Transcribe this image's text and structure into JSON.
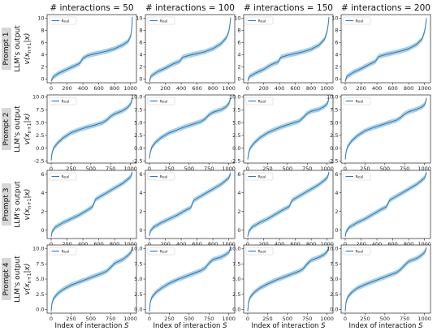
{
  "figure": {
    "column_titles": [
      "# interactions = 50",
      "# interactions = 100",
      "# interactions = 150",
      "# interactions = 200"
    ],
    "row_labels": [
      "Prompt 1",
      "Prompt 2",
      "Prompt 3",
      "Prompt 4"
    ],
    "y_axis_label_line1": "LLM's output",
    "y_axis_label_line2": "v(x_{n+1}|x)",
    "x_axis_label": "Index of interaction S",
    "line_color": "#2a7ab8",
    "band_color": "#8cbfe0"
  },
  "chart_data": [
    {
      "type": "line",
      "row": 1,
      "col": 1,
      "legend": [
        "Real"
      ],
      "x_range": [
        0,
        1024
      ],
      "x_ticks": [
        0,
        200,
        400,
        600,
        800,
        1000
      ],
      "y_ticks": [
        0,
        2,
        4,
        6,
        8,
        10
      ],
      "ylim": [
        -0.6,
        10.6
      ],
      "series": [
        {
          "name": "Real",
          "x": [
            0,
            30,
            100,
            200,
            300,
            360,
            400,
            450,
            500,
            600,
            700,
            800,
            900,
            970,
            1000,
            1010,
            1020,
            1024
          ],
          "y": [
            -0.3,
            0.4,
            1.0,
            1.6,
            2.2,
            2.6,
            3.4,
            3.8,
            4.0,
            4.3,
            4.6,
            5.0,
            5.6,
            6.2,
            7.0,
            7.6,
            9.0,
            10.2
          ]
        }
      ]
    },
    {
      "type": "line",
      "row": 1,
      "col": 2,
      "legend": [
        "Real"
      ],
      "x_range": [
        0,
        1024
      ],
      "x_ticks": [
        0,
        200,
        400,
        600,
        800,
        1000
      ],
      "y_ticks": [
        0,
        2,
        4,
        6,
        8,
        10
      ],
      "ylim": [
        -0.6,
        10.6
      ],
      "series": [
        {
          "name": "Real",
          "x": [
            0,
            20,
            100,
            200,
            300,
            380,
            420,
            500,
            600,
            700,
            800,
            900,
            970,
            1000,
            1015,
            1024
          ],
          "y": [
            -0.4,
            0.5,
            1.2,
            1.8,
            2.5,
            2.9,
            3.6,
            3.9,
            4.2,
            4.5,
            5.0,
            5.8,
            6.8,
            7.8,
            9.0,
            10.1
          ]
        }
      ]
    },
    {
      "type": "line",
      "row": 1,
      "col": 3,
      "legend": [
        "Real"
      ],
      "x_range": [
        0,
        1024
      ],
      "x_ticks": [
        0,
        200,
        400,
        600,
        800,
        1000
      ],
      "y_ticks": [
        0,
        2,
        4,
        6,
        8,
        10
      ],
      "ylim": [
        -0.6,
        10.6
      ],
      "series": [
        {
          "name": "Real",
          "x": [
            0,
            20,
            100,
            200,
            300,
            380,
            420,
            500,
            600,
            700,
            800,
            900,
            970,
            1000,
            1015,
            1024
          ],
          "y": [
            -0.3,
            0.4,
            1.0,
            1.6,
            2.4,
            2.8,
            3.6,
            3.9,
            4.2,
            4.5,
            4.9,
            5.6,
            6.6,
            7.8,
            9.0,
            10.2
          ]
        }
      ]
    },
    {
      "type": "line",
      "row": 1,
      "col": 4,
      "legend": [
        "Real"
      ],
      "x_range": [
        0,
        1024
      ],
      "x_ticks": [
        0,
        200,
        400,
        600,
        800,
        1000
      ],
      "y_ticks": [
        0,
        2,
        4,
        6,
        8,
        10
      ],
      "ylim": [
        -0.6,
        10.6
      ],
      "series": [
        {
          "name": "Real",
          "x": [
            0,
            20,
            100,
            200,
            300,
            380,
            420,
            500,
            600,
            700,
            800,
            900,
            970,
            1000,
            1015,
            1024
          ],
          "y": [
            -0.4,
            0.4,
            1.1,
            1.7,
            2.4,
            2.9,
            3.7,
            4.0,
            4.3,
            4.6,
            5.0,
            5.7,
            6.6,
            7.8,
            9.0,
            10.0
          ]
        }
      ]
    },
    {
      "type": "line",
      "row": 2,
      "col": 1,
      "legend": [
        "Real"
      ],
      "x_range": [
        0,
        1024
      ],
      "x_ticks": [
        0,
        250,
        500,
        750,
        1000
      ],
      "y_ticks": [
        -2.5,
        0.0,
        2.5,
        5.0,
        7.5,
        10.0
      ],
      "ylim": [
        -2.9,
        10.4
      ],
      "series": [
        {
          "name": "Real",
          "x": [
            0,
            10,
            30,
            80,
            150,
            250,
            350,
            450,
            550,
            650,
            700,
            750,
            800,
            900,
            960,
            1000,
            1015,
            1024
          ],
          "y": [
            -2.4,
            -1.0,
            0.0,
            1.0,
            2.0,
            3.0,
            3.6,
            4.1,
            4.5,
            5.0,
            5.5,
            6.2,
            6.7,
            7.3,
            7.9,
            8.6,
            9.2,
            9.8
          ]
        }
      ]
    },
    {
      "type": "line",
      "row": 2,
      "col": 2,
      "legend": [
        "Real"
      ],
      "x_range": [
        0,
        1024
      ],
      "x_ticks": [
        0,
        250,
        500,
        750,
        1000
      ],
      "y_ticks": [
        -2.5,
        0.0,
        2.5,
        5.0,
        7.5,
        10.0
      ],
      "ylim": [
        -2.9,
        10.4
      ],
      "series": [
        {
          "name": "Real",
          "x": [
            0,
            10,
            30,
            80,
            150,
            250,
            350,
            450,
            550,
            650,
            700,
            750,
            800,
            900,
            960,
            1000,
            1015,
            1024
          ],
          "y": [
            -2.0,
            -0.8,
            0.2,
            1.2,
            2.1,
            3.0,
            3.6,
            4.2,
            4.7,
            5.2,
            5.7,
            6.5,
            7.0,
            7.5,
            8.0,
            8.7,
            9.3,
            9.9
          ]
        }
      ]
    },
    {
      "type": "line",
      "row": 2,
      "col": 3,
      "legend": [
        "Real"
      ],
      "x_range": [
        0,
        1024
      ],
      "x_ticks": [
        0,
        250,
        500,
        750,
        1000
      ],
      "y_ticks": [
        -2.5,
        0.0,
        2.5,
        5.0,
        7.5,
        10.0
      ],
      "ylim": [
        -2.9,
        10.4
      ],
      "series": [
        {
          "name": "Real",
          "x": [
            0,
            10,
            30,
            80,
            150,
            250,
            350,
            450,
            550,
            650,
            700,
            750,
            800,
            900,
            960,
            1000,
            1015,
            1024
          ],
          "y": [
            -2.2,
            -1.0,
            0.0,
            1.0,
            2.0,
            3.0,
            3.7,
            4.3,
            4.8,
            5.3,
            6.0,
            6.8,
            7.2,
            7.6,
            8.1,
            8.6,
            9.2,
            9.8
          ]
        }
      ]
    },
    {
      "type": "line",
      "row": 2,
      "col": 4,
      "legend": [
        "Real"
      ],
      "x_range": [
        0,
        1024
      ],
      "x_ticks": [
        0,
        250,
        500,
        750,
        1000
      ],
      "y_ticks": [
        -2.5,
        0.0,
        2.5,
        5.0,
        7.5,
        10.0
      ],
      "ylim": [
        -2.9,
        10.4
      ],
      "series": [
        {
          "name": "Real",
          "x": [
            0,
            10,
            30,
            80,
            150,
            250,
            350,
            450,
            550,
            650,
            700,
            750,
            800,
            900,
            960,
            1000,
            1015,
            1024
          ],
          "y": [
            -2.2,
            -0.8,
            0.3,
            1.4,
            2.4,
            3.4,
            4.0,
            4.5,
            5.0,
            5.5,
            6.0,
            6.7,
            7.1,
            7.6,
            8.0,
            8.5,
            9.1,
            9.8
          ]
        }
      ]
    },
    {
      "type": "line",
      "row": 3,
      "col": 1,
      "legend": [
        "Real"
      ],
      "x_range": [
        0,
        1024
      ],
      "x_ticks": [
        0,
        200,
        400,
        600,
        800,
        1000
      ],
      "y_ticks": [
        0,
        2,
        4,
        6
      ],
      "ylim": [
        -0.9,
        6.4
      ],
      "series": [
        {
          "name": "Real",
          "x": [
            0,
            10,
            50,
            150,
            250,
            350,
            450,
            520,
            560,
            620,
            700,
            800,
            900,
            960,
            1000,
            1015,
            1024
          ],
          "y": [
            -0.7,
            -0.2,
            0.3,
            0.8,
            1.2,
            1.6,
            2.1,
            2.5,
            3.3,
            3.6,
            4.0,
            4.5,
            5.0,
            5.4,
            5.7,
            6.0,
            6.2
          ]
        }
      ]
    },
    {
      "type": "line",
      "row": 3,
      "col": 2,
      "legend": [
        "Real"
      ],
      "x_range": [
        0,
        1024
      ],
      "x_ticks": [
        0,
        200,
        400,
        600,
        800,
        1000
      ],
      "y_ticks": [
        0,
        2,
        4,
        6
      ],
      "ylim": [
        -0.9,
        6.4
      ],
      "series": [
        {
          "name": "Real",
          "x": [
            0,
            10,
            50,
            150,
            250,
            350,
            450,
            520,
            560,
            620,
            700,
            800,
            900,
            960,
            1000,
            1015,
            1024
          ],
          "y": [
            -0.6,
            -0.1,
            0.3,
            0.8,
            1.2,
            1.6,
            2.1,
            2.4,
            3.2,
            3.5,
            3.9,
            4.4,
            4.9,
            5.3,
            5.6,
            5.9,
            6.1
          ]
        }
      ]
    },
    {
      "type": "line",
      "row": 3,
      "col": 3,
      "legend": [
        "Real"
      ],
      "x_range": [
        0,
        1024
      ],
      "x_ticks": [
        0,
        200,
        400,
        600,
        800,
        1000
      ],
      "y_ticks": [
        0,
        2,
        4,
        6
      ],
      "ylim": [
        -0.9,
        6.4
      ],
      "series": [
        {
          "name": "Real",
          "x": [
            0,
            10,
            50,
            150,
            250,
            350,
            450,
            520,
            560,
            620,
            700,
            800,
            900,
            960,
            1000,
            1015,
            1024
          ],
          "y": [
            -0.7,
            -0.2,
            0.3,
            0.8,
            1.2,
            1.7,
            2.2,
            2.5,
            3.2,
            3.5,
            3.9,
            4.4,
            4.9,
            5.3,
            5.6,
            5.9,
            6.2
          ]
        }
      ]
    },
    {
      "type": "line",
      "row": 3,
      "col": 4,
      "legend": [
        "Real"
      ],
      "x_range": [
        0,
        1024
      ],
      "x_ticks": [
        0,
        200,
        400,
        600,
        800,
        1000
      ],
      "y_ticks": [
        0,
        2,
        4,
        6
      ],
      "ylim": [
        -0.9,
        6.4
      ],
      "series": [
        {
          "name": "Real",
          "x": [
            0,
            10,
            50,
            150,
            250,
            350,
            450,
            520,
            560,
            620,
            700,
            800,
            900,
            960,
            1000,
            1015,
            1024
          ],
          "y": [
            -0.7,
            -0.2,
            0.3,
            0.8,
            1.2,
            1.7,
            2.2,
            2.5,
            3.2,
            3.5,
            3.9,
            4.4,
            4.9,
            5.3,
            5.6,
            5.9,
            6.2
          ]
        }
      ]
    },
    {
      "type": "line",
      "row": 4,
      "col": 1,
      "legend": [
        "Real"
      ],
      "x_range": [
        0,
        1024
      ],
      "x_ticks": [
        0,
        250,
        500,
        750,
        1000
      ],
      "y_ticks": [
        0.0,
        2.5,
        5.0,
        7.5,
        10.0
      ],
      "ylim": [
        -0.6,
        10.6
      ],
      "series": [
        {
          "name": "Real",
          "x": [
            0,
            10,
            30,
            80,
            150,
            250,
            350,
            450,
            550,
            650,
            700,
            750,
            800,
            900,
            960,
            1000,
            1015,
            1024
          ],
          "y": [
            -0.3,
            1.0,
            1.8,
            2.6,
            3.3,
            4.0,
            4.5,
            5.0,
            5.5,
            6.0,
            6.3,
            6.9,
            7.6,
            8.2,
            8.8,
            9.3,
            9.7,
            10.2
          ]
        }
      ]
    },
    {
      "type": "line",
      "row": 4,
      "col": 2,
      "legend": [
        "Real"
      ],
      "x_range": [
        0,
        1024
      ],
      "x_ticks": [
        0,
        250,
        500,
        750,
        1000
      ],
      "y_ticks": [
        0.0,
        2.5,
        5.0,
        7.5,
        10.0
      ],
      "ylim": [
        -0.6,
        10.6
      ],
      "series": [
        {
          "name": "Real",
          "x": [
            0,
            10,
            30,
            80,
            150,
            250,
            350,
            450,
            550,
            650,
            700,
            750,
            800,
            900,
            960,
            1000,
            1015,
            1024
          ],
          "y": [
            -0.3,
            1.2,
            2.0,
            2.8,
            3.5,
            4.3,
            4.9,
            5.4,
            5.9,
            6.4,
            6.8,
            7.6,
            8.2,
            8.6,
            9.0,
            9.4,
            9.8,
            10.3
          ]
        }
      ]
    },
    {
      "type": "line",
      "row": 4,
      "col": 3,
      "legend": [
        "Real"
      ],
      "x_range": [
        0,
        1024
      ],
      "x_ticks": [
        0,
        250,
        500,
        750,
        1000
      ],
      "y_ticks": [
        0.0,
        2.5,
        5.0,
        7.5,
        10.0
      ],
      "ylim": [
        -0.6,
        10.6
      ],
      "series": [
        {
          "name": "Real",
          "x": [
            0,
            10,
            30,
            80,
            150,
            250,
            350,
            450,
            550,
            650,
            700,
            750,
            800,
            900,
            960,
            1000,
            1015,
            1024
          ],
          "y": [
            -0.3,
            1.2,
            2.0,
            2.8,
            3.5,
            4.2,
            4.8,
            5.3,
            5.8,
            6.3,
            6.7,
            7.5,
            8.1,
            8.6,
            9.0,
            9.5,
            9.9,
            10.3
          ]
        }
      ]
    },
    {
      "type": "line",
      "row": 4,
      "col": 4,
      "legend": [
        "Real"
      ],
      "x_range": [
        0,
        1024
      ],
      "x_ticks": [
        0,
        250,
        500,
        750,
        1000
      ],
      "y_ticks": [
        0.0,
        2.5,
        5.0,
        7.5,
        10.0
      ],
      "ylim": [
        -0.6,
        10.6
      ],
      "series": [
        {
          "name": "Real",
          "x": [
            0,
            10,
            30,
            80,
            150,
            250,
            350,
            450,
            550,
            650,
            700,
            750,
            800,
            900,
            960,
            1000,
            1015,
            1024
          ],
          "y": [
            -0.3,
            1.2,
            2.0,
            2.8,
            3.5,
            4.1,
            4.6,
            5.1,
            5.6,
            6.1,
            6.6,
            7.3,
            7.9,
            8.4,
            8.9,
            9.4,
            9.8,
            10.2
          ]
        }
      ]
    }
  ]
}
